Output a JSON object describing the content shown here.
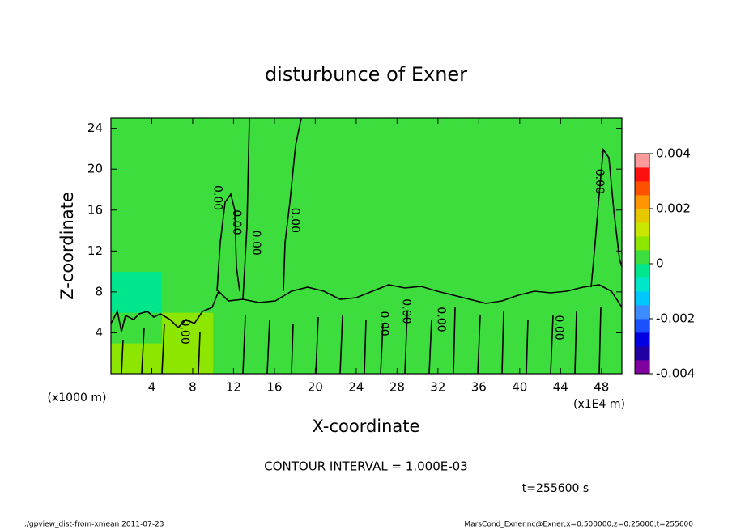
{
  "chart_data": {
    "type": "contour",
    "title": "disturbunce of Exner",
    "x_label": "X-coordinate",
    "y_label": "Z-coordinate",
    "y_unit": "(x1000 m)",
    "x_unit": "(x1E4 m)",
    "contour_interval": "CONTOUR INTERVAL = 1.000E-03",
    "time_label": "t=255600 s",
    "footer_left": "./gpview_dist-from-xmean  2011-07-23",
    "footer_right": "MarsCond_Exner.nc@Exner,x=0:500000,z=0:25000,t=255600",
    "xlim": [
      0,
      50
    ],
    "ylim": [
      0,
      25
    ],
    "xticks": [
      4,
      8,
      12,
      16,
      20,
      24,
      28,
      32,
      36,
      40,
      44,
      48
    ],
    "yticks": [
      4,
      8,
      12,
      16,
      20,
      24
    ],
    "field": {
      "x_edges": [
        0,
        5,
        10,
        15,
        20,
        25,
        30,
        35,
        40,
        45,
        50
      ],
      "z_edges": [
        0,
        3,
        6,
        10,
        25
      ],
      "values": [
        [
          0.0007,
          0.0008,
          0.0004,
          0.0003,
          0.0003,
          0.0002,
          0.0002,
          0.0002,
          0.0003,
          0.0003
        ],
        [
          0.0004,
          0.0005,
          0.0003,
          0.0002,
          0.0002,
          0.0002,
          0.0002,
          0.0002,
          0.0002,
          0.0003
        ],
        [
          -0.0001,
          0.0002,
          0.0002,
          0.0001,
          0.0002,
          0.0002,
          0.0002,
          0.0002,
          0.0002,
          0.0002
        ],
        [
          0.0002,
          0.0002,
          0.0002,
          0.0002,
          0.0002,
          0.0002,
          0.0002,
          0.0002,
          0.0002,
          0.0002
        ]
      ]
    },
    "contour_labels": [
      {
        "x": 10.4,
        "z": 17.2,
        "label": "0.00"
      },
      {
        "x": 12.3,
        "z": 14.8,
        "label": "0.00"
      },
      {
        "x": 14.2,
        "z": 12.8,
        "label": "0.00"
      },
      {
        "x": 18.0,
        "z": 15.0,
        "label": "0.00"
      },
      {
        "x": 7.2,
        "z": 4.1,
        "label": "0.00"
      },
      {
        "x": 26.7,
        "z": 4.9,
        "label": "0.00"
      },
      {
        "x": 28.9,
        "z": 6.1,
        "label": "0.00"
      },
      {
        "x": 32.3,
        "z": 5.3,
        "label": "0.00"
      },
      {
        "x": 43.8,
        "z": 4.5,
        "label": "0.00"
      },
      {
        "x": 47.8,
        "z": 18.8,
        "label": "0.00"
      }
    ],
    "colorbar": {
      "lim": [
        -0.004,
        0.004
      ],
      "ticks": [
        -0.004,
        -0.002,
        0,
        0.002,
        0.004
      ],
      "colors": [
        "#8000a0",
        "#2000a0",
        "#0000e0",
        "#1a50ff",
        "#3c8cff",
        "#00c8ff",
        "#00e6c8",
        "#00e68c",
        "#3ddd3d",
        "#8ce600",
        "#c8e600",
        "#e6c800",
        "#ff9600",
        "#ff5000",
        "#ff1010",
        "#ff9a9a"
      ]
    }
  }
}
